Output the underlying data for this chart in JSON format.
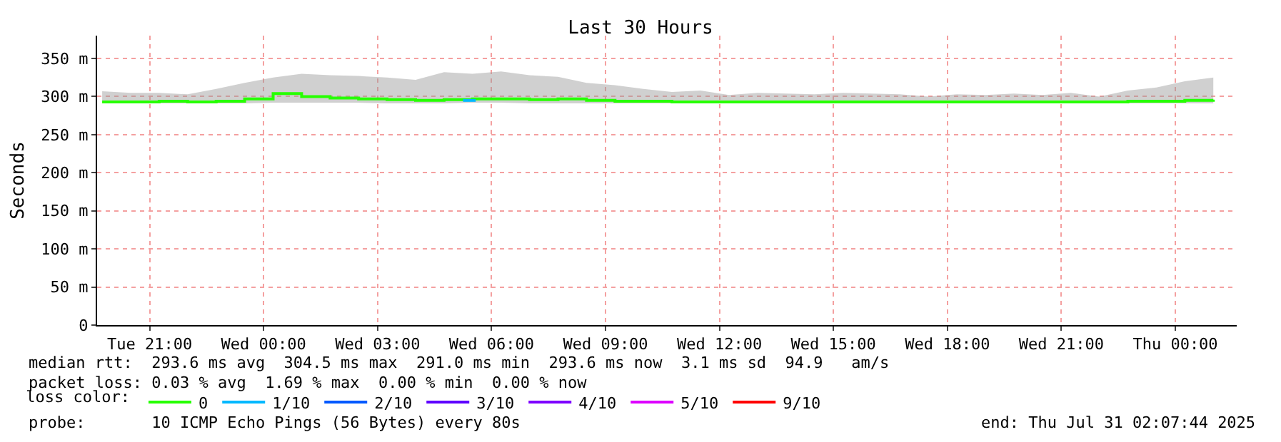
{
  "chart_data": {
    "type": "line",
    "title": "Last 30 Hours",
    "ylabel": "Seconds",
    "legend_title": "loss color:",
    "x": [
      "2025-07-29T19:45",
      "2025-07-29T20:30",
      "2025-07-29T21:15",
      "2025-07-29T22:00",
      "2025-07-29T22:45",
      "2025-07-29T23:30",
      "2025-07-30T00:15",
      "2025-07-30T01:00",
      "2025-07-30T01:45",
      "2025-07-30T02:30",
      "2025-07-30T03:15",
      "2025-07-30T04:00",
      "2025-07-30T04:45",
      "2025-07-30T05:30",
      "2025-07-30T06:15",
      "2025-07-30T07:00",
      "2025-07-30T07:45",
      "2025-07-30T08:30",
      "2025-07-30T09:15",
      "2025-07-30T10:00",
      "2025-07-30T10:45",
      "2025-07-30T11:30",
      "2025-07-30T12:15",
      "2025-07-30T13:00",
      "2025-07-30T13:45",
      "2025-07-30T14:30",
      "2025-07-30T15:15",
      "2025-07-30T16:00",
      "2025-07-30T16:45",
      "2025-07-30T17:30",
      "2025-07-30T18:15",
      "2025-07-30T19:00",
      "2025-07-30T19:45",
      "2025-07-30T20:30",
      "2025-07-30T21:15",
      "2025-07-30T22:00",
      "2025-07-30T22:45",
      "2025-07-30T23:30",
      "2025-07-31T00:15",
      "2025-07-31T01:00"
    ],
    "series": [
      {
        "name": "0",
        "color": "#26ff00",
        "values": [
          293,
          293,
          294,
          293,
          294,
          297,
          304,
          300,
          298,
          297,
          296,
          295,
          296,
          297,
          297,
          296,
          297,
          295,
          294,
          294,
          293,
          293,
          293,
          293,
          293,
          293,
          293,
          293,
          293,
          293,
          293,
          293,
          293,
          293,
          293,
          293,
          294,
          294,
          295,
          296
        ],
        "lower": [
          291,
          291,
          291,
          291,
          291,
          291,
          292,
          292,
          292,
          292,
          291,
          291,
          291,
          292,
          292,
          291,
          291,
          291,
          291,
          291,
          291,
          291,
          291,
          291,
          291,
          291,
          291,
          291,
          291,
          291,
          291,
          291,
          291,
          291,
          291,
          291,
          291,
          291,
          291,
          291
        ],
        "upper": [
          307,
          305,
          305,
          303,
          310,
          318,
          325,
          330,
          328,
          327,
          325,
          322,
          332,
          330,
          333,
          328,
          326,
          318,
          315,
          310,
          306,
          308,
          302,
          305,
          304,
          303,
          305,
          304,
          303,
          300,
          303,
          302,
          304,
          302,
          305,
          300,
          308,
          312,
          320,
          325
        ]
      },
      {
        "name": "1/10",
        "color": "#00b8ff",
        "x": [
          "2025-07-30T05:15",
          "2025-07-30T05:35"
        ],
        "values": [
          295,
          295
        ]
      },
      {
        "name": "2/10",
        "color": "#0059ff",
        "values": [
          null,
          null,
          null,
          null,
          null,
          null,
          null,
          null,
          null,
          null,
          null,
          null,
          null,
          null,
          null,
          null,
          null,
          null,
          null,
          null,
          null,
          null,
          null,
          null,
          null,
          null,
          null,
          null,
          null,
          null,
          null,
          null,
          null,
          null,
          null,
          null,
          null,
          null,
          null,
          null
        ]
      },
      {
        "name": "3/10",
        "color": "#5e00ff",
        "values": [
          null,
          null,
          null,
          null,
          null,
          null,
          null,
          null,
          null,
          null,
          null,
          null,
          null,
          null,
          null,
          null,
          null,
          null,
          null,
          null,
          null,
          null,
          null,
          null,
          null,
          null,
          null,
          null,
          null,
          null,
          null,
          null,
          null,
          null,
          null,
          null,
          null,
          null,
          null,
          null
        ]
      },
      {
        "name": "4/10",
        "color": "#7e00ff",
        "values": [
          null,
          null,
          null,
          null,
          null,
          null,
          null,
          null,
          null,
          null,
          null,
          null,
          null,
          null,
          null,
          null,
          null,
          null,
          null,
          null,
          null,
          null,
          null,
          null,
          null,
          null,
          null,
          null,
          null,
          null,
          null,
          null,
          null,
          null,
          null,
          null,
          null,
          null,
          null,
          null
        ]
      },
      {
        "name": "5/10",
        "color": "#dd00ff",
        "values": [
          null,
          null,
          null,
          null,
          null,
          null,
          null,
          null,
          null,
          null,
          null,
          null,
          null,
          null,
          null,
          null,
          null,
          null,
          null,
          null,
          null,
          null,
          null,
          null,
          null,
          null,
          null,
          null,
          null,
          null,
          null,
          null,
          null,
          null,
          null,
          null,
          null,
          null,
          null,
          null
        ]
      },
      {
        "name": "9/10",
        "color": "#ff0000",
        "values": [
          null,
          null,
          null,
          null,
          null,
          null,
          null,
          null,
          null,
          null,
          null,
          null,
          null,
          null,
          null,
          null,
          null,
          null,
          null,
          null,
          null,
          null,
          null,
          null,
          null,
          null,
          null,
          null,
          null,
          null,
          null,
          null,
          null,
          null,
          null,
          null,
          null,
          null,
          null,
          null
        ]
      }
    ],
    "xlim": [
      "2025-07-29T19:37",
      "2025-07-31T01:37"
    ],
    "xticks": [
      {
        "value": "2025-07-29T21:00",
        "label": "Tue 21:00"
      },
      {
        "value": "2025-07-30T00:00",
        "label": "Wed 00:00"
      },
      {
        "value": "2025-07-30T03:00",
        "label": "Wed 03:00"
      },
      {
        "value": "2025-07-30T06:00",
        "label": "Wed 06:00"
      },
      {
        "value": "2025-07-30T09:00",
        "label": "Wed 09:00"
      },
      {
        "value": "2025-07-30T12:00",
        "label": "Wed 12:00"
      },
      {
        "value": "2025-07-30T15:00",
        "label": "Wed 15:00"
      },
      {
        "value": "2025-07-30T18:00",
        "label": "Wed 18:00"
      },
      {
        "value": "2025-07-30T21:00",
        "label": "Wed 21:00"
      },
      {
        "value": "2025-07-31T00:00",
        "label": "Thu 00:00"
      }
    ],
    "ylim": [
      0,
      380
    ],
    "yticks": [
      0,
      {
        "value": 50,
        "label": "50 m"
      },
      {
        "value": 100,
        "label": "100 m"
      },
      {
        "value": 150,
        "label": "150 m"
      },
      {
        "value": 200,
        "label": "200 m"
      },
      {
        "value": 250,
        "label": "250 m"
      },
      {
        "value": 300,
        "label": "300 m"
      },
      {
        "value": 350,
        "label": "350 m"
      }
    ],
    "grid": true,
    "legend": "bottom",
    "marker": "none",
    "line_style": "solid",
    "annotations": [
      "median rtt:  293.6 ms avg  304.5 ms max  291.0 ms min  293.6 ms now  3.1 ms sd  94.9   am/s",
      "packet loss: 0.03 % avg  1.69 % max  0.00 % min  0.00 % now",
      "probe:       10 ICMP Echo Pings (56 Bytes) every 80s",
      "end: Thu Jul 31 02:07:44 2025"
    ]
  }
}
